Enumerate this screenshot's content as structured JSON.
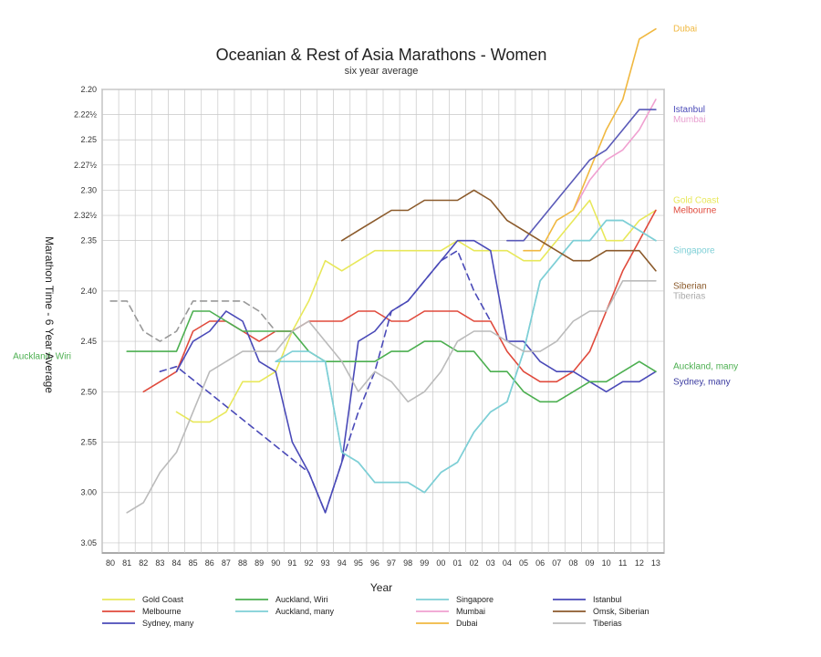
{
  "chart_data": {
    "type": "line",
    "title": "Oceanian & Rest of Asia Marathons - Women",
    "subtitle": "six year average",
    "xlabel": "Year",
    "ylabel": "Marathon Time - 6 Year Average",
    "x_ticks": [
      "80",
      "81",
      "82",
      "83",
      "84",
      "85",
      "86",
      "87",
      "88",
      "89",
      "90",
      "91",
      "92",
      "93",
      "94",
      "95",
      "96",
      "97",
      "98",
      "99",
      "00",
      "01",
      "02",
      "03",
      "04",
      "05",
      "06",
      "07",
      "08",
      "09",
      "10",
      "11",
      "12",
      "13"
    ],
    "y_ticks": [
      "2.20",
      "2.22½",
      "2.25",
      "2.27½",
      "2.30",
      "2.32½",
      "2.35",
      "2.40",
      "2.45",
      "2.50",
      "2.55",
      "3.00",
      "3.05"
    ],
    "y_scale": "minutes_with_labels_h.mm",
    "ylim_minutes": [
      140,
      186
    ],
    "grid": true,
    "legend_position": "bottom",
    "series": [
      {
        "name": "Gold Coast",
        "color": "#e8e85a",
        "dash": false,
        "x": [
          84,
          85,
          86,
          87,
          88,
          89,
          90,
          91,
          92,
          93,
          94,
          95,
          96,
          97,
          98,
          99,
          0,
          1,
          2,
          3,
          4,
          5,
          6,
          7,
          8,
          9,
          10,
          11,
          12,
          13
        ],
        "y": [
          172,
          173,
          173,
          172,
          169,
          169,
          168,
          164,
          161,
          157,
          158,
          157,
          156,
          156,
          156,
          156,
          156,
          155,
          156,
          156,
          156,
          157,
          157,
          155,
          153,
          151,
          155,
          155,
          153,
          152
        ]
      },
      {
        "name": "Melbourne",
        "color": "#e04a3c",
        "dash": false,
        "x": [
          82,
          83,
          84,
          85,
          86,
          87,
          88,
          89,
          90,
          91,
          92,
          93,
          94,
          95,
          96,
          97,
          98,
          99,
          0,
          1,
          2,
          3,
          4,
          5,
          6,
          7,
          8,
          9,
          10,
          11,
          12,
          13
        ],
        "y": [
          170,
          169,
          168,
          164,
          163,
          163,
          164,
          165,
          164,
          164,
          163,
          163,
          163,
          162,
          162,
          163,
          163,
          162,
          162,
          162,
          163,
          163,
          166,
          168,
          169,
          169,
          168,
          166,
          162,
          158,
          155,
          152
        ]
      },
      {
        "name": "Sydney, many",
        "color": "#4a4ab8",
        "dash": false,
        "x": [
          84,
          85,
          86,
          87,
          88,
          89,
          90,
          91,
          92,
          93,
          94,
          95,
          96,
          97,
          98,
          99,
          0,
          1,
          2,
          3,
          4,
          5,
          6,
          7,
          8,
          9,
          10,
          11,
          12,
          13
        ],
        "y": [
          168,
          165,
          164,
          162,
          163,
          167,
          168,
          175,
          178,
          182,
          177,
          165,
          164,
          162,
          161,
          159,
          157,
          155,
          155,
          156,
          165,
          165,
          167,
          168,
          168,
          169,
          170,
          169,
          169,
          168
        ]
      },
      {
        "name": "Sydney, many (dashed)",
        "color": "#4a4ab8",
        "dash": true,
        "x": [
          83,
          84,
          92,
          93,
          94,
          95,
          96,
          97,
          98,
          99,
          0,
          1,
          2,
          3
        ],
        "y": [
          168,
          167.5,
          178,
          182,
          177,
          172,
          168,
          162,
          161,
          159,
          157,
          156,
          160,
          163
        ]
      },
      {
        "name": "Auckland, Wiri",
        "color": "#4caf50",
        "dash": false,
        "x": [
          81,
          82,
          83,
          84,
          85,
          86,
          87,
          88,
          89,
          90,
          91,
          92,
          93,
          94,
          95,
          96,
          97,
          98,
          99,
          0,
          1,
          2,
          3,
          4,
          5,
          6,
          7,
          8,
          9,
          10,
          11,
          12,
          13
        ],
        "y": [
          166,
          166,
          166,
          166,
          162,
          162,
          163,
          164,
          164,
          164,
          164,
          166,
          167,
          167,
          167,
          167,
          166,
          166,
          165,
          165,
          166,
          166,
          168,
          168,
          170,
          171,
          171,
          170,
          169,
          169,
          168,
          167,
          168
        ]
      },
      {
        "name": "Auckland, many",
        "color": "#7ecfd6",
        "dash": false,
        "x": [
          90,
          91,
          92,
          93,
          94,
          95,
          96,
          97,
          98,
          99,
          0,
          1,
          2,
          3,
          4,
          5,
          6,
          7,
          8,
          9,
          10,
          11,
          12,
          13
        ],
        "y": [
          167,
          167,
          167,
          167,
          176,
          177,
          179,
          179,
          179,
          180,
          178,
          177,
          174,
          172,
          171,
          166,
          159,
          157,
          155,
          155,
          153,
          153,
          154,
          155
        ]
      },
      {
        "name": "Singapore",
        "color": "#7ecfd6",
        "dash": false,
        "x": [
          90,
          91,
          92,
          93,
          94,
          95,
          96,
          97,
          98,
          99,
          0,
          1,
          2,
          3,
          4,
          5,
          6,
          7,
          8,
          9,
          10,
          11,
          12,
          13
        ],
        "y": [
          167,
          166,
          166,
          167,
          176,
          177,
          179,
          179,
          179,
          180,
          178,
          177,
          174,
          172,
          171,
          166,
          159,
          157,
          155,
          155,
          153,
          153,
          154,
          155
        ]
      },
      {
        "name": "Mumbai",
        "color": "#f0a0d0",
        "dash": false,
        "x": [
          8,
          9,
          10,
          11,
          12,
          13
        ],
        "y": [
          152,
          149,
          147,
          146,
          144,
          141
        ]
      },
      {
        "name": "Dubai",
        "color": "#f0b840",
        "dash": false,
        "x": [
          5,
          6,
          7,
          8,
          9,
          10,
          11,
          12,
          13
        ],
        "y": [
          156,
          156,
          153,
          152,
          148,
          144,
          141,
          135,
          134
        ]
      },
      {
        "name": "Istanbul",
        "color": "#5a5ab8",
        "dash": false,
        "x": [
          4,
          5,
          6,
          7,
          8,
          9,
          10,
          11,
          12,
          13
        ],
        "y": [
          155,
          155,
          153,
          151,
          149,
          147,
          146,
          144,
          142,
          142
        ]
      },
      {
        "name": "Omsk, Siberian",
        "color": "#8b5a2b",
        "dash": false,
        "x": [
          94,
          95,
          96,
          97,
          98,
          99,
          0,
          1,
          2,
          3,
          4,
          5,
          6,
          7,
          8,
          9,
          10,
          11,
          12,
          13
        ],
        "y": [
          155,
          154,
          153,
          152,
          152,
          151,
          151,
          151,
          150,
          151,
          153,
          154,
          155,
          156,
          157,
          157,
          156,
          156,
          156,
          158
        ]
      },
      {
        "name": "Tiberias",
        "color": "#bbbbbb",
        "dash": false,
        "x": [
          81,
          82,
          83,
          84,
          85,
          86,
          87,
          88,
          89,
          90,
          91,
          92,
          93,
          94,
          95,
          96,
          97,
          98,
          99,
          0,
          1,
          2,
          3,
          4,
          5,
          6,
          7,
          8,
          9,
          10,
          11,
          12,
          13
        ],
        "y": [
          182,
          181,
          178,
          176,
          172,
          168,
          167,
          166,
          166,
          166,
          164,
          163,
          165,
          167,
          170,
          168,
          169,
          171,
          170,
          168,
          165,
          164,
          164,
          165,
          166,
          166,
          165,
          163,
          162,
          162,
          159,
          159,
          159
        ]
      },
      {
        "name": "Tiberias (dashed)",
        "color": "#999999",
        "dash": true,
        "x": [
          80,
          81,
          82,
          83,
          84,
          85,
          86,
          87,
          88,
          89,
          90
        ],
        "y": [
          161,
          161,
          164,
          165,
          164,
          161,
          161,
          161,
          161,
          162,
          164
        ]
      }
    ],
    "end_labels": [
      {
        "text": "Dubai",
        "color": "#f0b840",
        "y": 134
      },
      {
        "text": "Istanbul",
        "color": "#4a4ab8",
        "y": 142
      },
      {
        "text": "Mumbai",
        "color": "#e8a0d0",
        "y": 143
      },
      {
        "text": "Gold Coast",
        "color": "#e8e85a",
        "y": 151
      },
      {
        "text": "Melbourne",
        "color": "#e04a3c",
        "y": 152
      },
      {
        "text": "Singapore",
        "color": "#7ecfd6",
        "y": 156
      },
      {
        "text": "Siberian",
        "color": "#8b5a2b",
        "y": 159.5
      },
      {
        "text": "Tiberias",
        "color": "#aaaaaa",
        "y": 160.5
      },
      {
        "text": "Auckland, many",
        "color": "#4caf50",
        "y": 167.5
      },
      {
        "text": "Sydney, many",
        "color": "#3a3aa0",
        "y": 169
      }
    ],
    "left_label": {
      "text": "Auckland, Wiri",
      "color": "#4caf50",
      "y": 166.5
    },
    "legend": [
      {
        "name": "Gold Coast",
        "color": "#e8e85a"
      },
      {
        "name": "Melbourne",
        "color": "#e04a3c"
      },
      {
        "name": "Sydney, many",
        "color": "#4a4ab8"
      },
      {
        "name": "Auckland, Wiri",
        "color": "#4caf50"
      },
      {
        "name": "Auckland, many",
        "color": "#7ecfd6"
      },
      {
        "name": "Singapore",
        "color": "#7ecfd6"
      },
      {
        "name": "Mumbai",
        "color": "#f0a0d0"
      },
      {
        "name": "Dubai",
        "color": "#f0b840"
      },
      {
        "name": "Istanbul",
        "color": "#4a4ab8"
      },
      {
        "name": "Omsk, Siberian",
        "color": "#8b5a2b"
      },
      {
        "name": "Tiberias",
        "color": "#bbbbbb"
      }
    ]
  }
}
